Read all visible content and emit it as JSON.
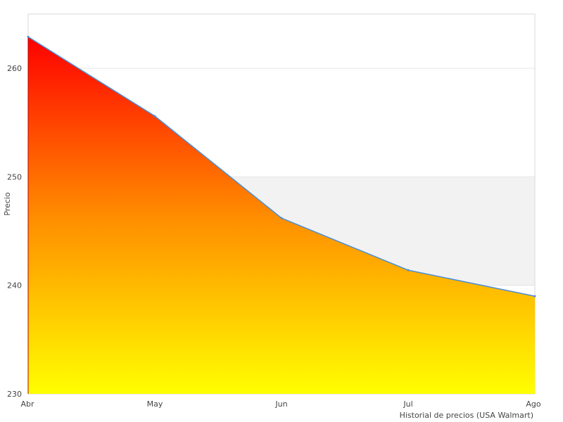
{
  "chart_data": {
    "type": "area",
    "categories": [
      "Abr",
      "May",
      "Jun",
      "Jul",
      "Ago"
    ],
    "series": [
      {
        "values": [
          262.9,
          255.6,
          246.2,
          241.4,
          239.0
        ]
      }
    ],
    "xlabel": "Historial de precios (USA Walmart)",
    "ylabel": "Precio",
    "ylim": [
      230,
      265
    ],
    "yticks": [
      230,
      240,
      250,
      260
    ],
    "grid": true,
    "legend": "none",
    "colors": {
      "fill_top": "#ff0000",
      "fill_mid": "#ff8c00",
      "fill_bottom": "#ffff00",
      "line": "#4a90d9",
      "band": "#f2f2f2",
      "grid": "#e6e6e6",
      "border": "#d9d9d9"
    }
  }
}
